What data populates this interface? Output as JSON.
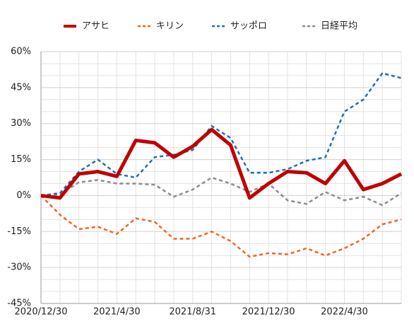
{
  "chart_data": {
    "type": "line",
    "categories": [
      "2020/12/30",
      null,
      null,
      null,
      "2021/4/30",
      null,
      null,
      null,
      "2021/8/31",
      null,
      null,
      null,
      "2021/12/30",
      null,
      null,
      null,
      "2022/4/30",
      null,
      null,
      null
    ],
    "series": [
      {
        "name": "アサヒ",
        "color": "#c00000",
        "style": "solid",
        "values": [
          0,
          -1,
          9,
          10,
          8,
          23,
          22,
          16,
          20.5,
          27.5,
          21,
          -1,
          5,
          10,
          9.5,
          5,
          14.5,
          2.5,
          5,
          9
        ]
      },
      {
        "name": "キリン",
        "color": "#f4661b",
        "style": "dashed",
        "values": [
          0,
          -8,
          -14,
          -13,
          -16,
          -9.5,
          -11,
          -18,
          -18,
          -15,
          -19,
          -25.5,
          -24,
          -24.5,
          -22,
          -25,
          -22,
          -18,
          -12,
          -10
        ]
      },
      {
        "name": "サッポロ",
        "color": "#1f6fb5",
        "style": "dashed",
        "values": [
          0,
          1,
          10,
          15,
          9,
          7.5,
          16,
          17,
          19,
          29,
          24,
          9.5,
          9.5,
          11,
          14.5,
          16,
          35,
          40,
          51,
          49
        ]
      },
      {
        "name": "日経平均",
        "color": "#8c8c8c",
        "style": "dashed",
        "values": [
          0,
          0.5,
          5.5,
          6.5,
          5,
          5,
          4.5,
          -0.5,
          2.5,
          7.5,
          5,
          1.5,
          5,
          -2,
          -3.5,
          1.5,
          -2,
          -0.5,
          -4,
          1
        ]
      }
    ],
    "ylim": [
      -45,
      60
    ],
    "yticks": [
      {
        "value": -45,
        "label": "-45%"
      },
      {
        "value": -30,
        "label": "-30%"
      },
      {
        "value": -15,
        "label": "-15%"
      },
      {
        "value": 0,
        "label": "0%"
      },
      {
        "value": 15,
        "label": "15%"
      },
      {
        "value": 30,
        "label": "30%"
      },
      {
        "value": 45,
        "label": "45%"
      },
      {
        "value": 60,
        "label": "60%"
      }
    ],
    "minor_yticks": [
      -40,
      -35,
      -25,
      -20,
      -10,
      -5,
      5,
      10,
      20,
      25,
      35,
      40,
      50,
      55
    ],
    "grid": true,
    "legend": "top"
  }
}
